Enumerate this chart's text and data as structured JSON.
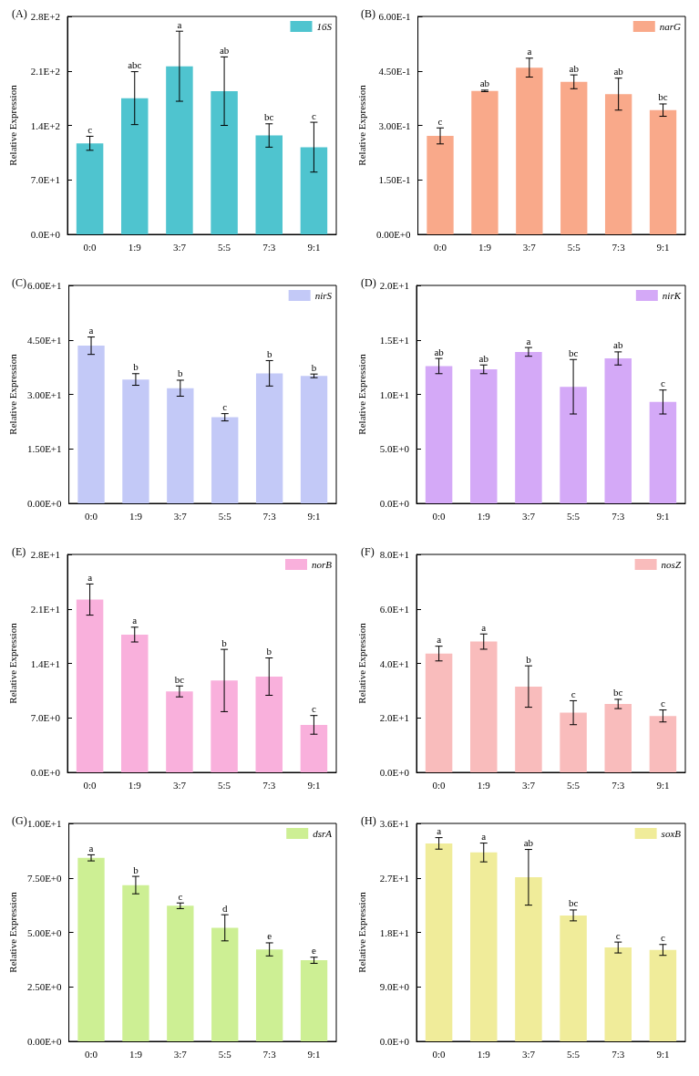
{
  "chart_data": [
    {
      "type": "bar",
      "title": "(A)",
      "ylabel": "Relative Expression",
      "categories": [
        "0:0",
        "1:9",
        "3:7",
        "5:5",
        "7:3",
        "9:1"
      ],
      "legend": "top right",
      "ylim": [
        0,
        280
      ],
      "yticks": [
        {
          "value": 0,
          "label": "0.0E+0"
        },
        {
          "value": 70,
          "label": "7.0E+1"
        },
        {
          "value": 140,
          "label": "1.4E+2"
        },
        {
          "value": 210,
          "label": "2.1E+2"
        },
        {
          "value": 280,
          "label": "2.8E+2"
        }
      ],
      "series": [
        {
          "name": "16S",
          "color": "#4fc4cf",
          "values": [
            117,
            175,
            216,
            184,
            127,
            112
          ],
          "errors": [
            9,
            34,
            45,
            44,
            15,
            32
          ],
          "value_labels": [
            "c",
            "abc",
            null,
            null,
            "bc",
            "c"
          ]
        }
      ],
      "annotations": [
        "a",
        "ab"
      ]
    },
    {
      "type": "bar",
      "title": "(B)",
      "ylabel": "Relative Expression",
      "categories": [
        "0:0",
        "1:9",
        "3:7",
        "5:5",
        "7:3",
        "9:1"
      ],
      "legend": "top right",
      "ylim": [
        0,
        0.6
      ],
      "yticks": [
        {
          "value": 0,
          "label": "0.00E+0"
        },
        {
          "value": 0.15,
          "label": "1.50E-1"
        },
        {
          "value": 0.3,
          "label": "3.00E-1"
        },
        {
          "value": 0.45,
          "label": "4.50E-1"
        },
        {
          "value": 0.6,
          "label": "6.00E-1"
        }
      ],
      "series": [
        {
          "name": "narG",
          "color": "#f9a98a",
          "values": [
            0.271,
            0.395,
            0.459,
            0.42,
            0.386,
            0.342
          ],
          "errors": [
            0.022,
            0.002,
            0.026,
            0.019,
            0.044,
            0.017
          ],
          "value_labels": [
            "c",
            "ab",
            "a",
            "ab",
            "ab",
            "bc"
          ]
        }
      ]
    },
    {
      "type": "bar",
      "title": "(C)",
      "ylabel": "Relative Expression",
      "categories": [
        "0:0",
        "1:9",
        "3:7",
        "5:5",
        "7:3",
        "9:1"
      ],
      "legend": "top right",
      "ylim": [
        0,
        60
      ],
      "yticks": [
        {
          "value": 0,
          "label": "0.00E+0"
        },
        {
          "value": 15,
          "label": "1.50E+1"
        },
        {
          "value": 30,
          "label": "3.00E+1"
        },
        {
          "value": 45,
          "label": "4.50E+1"
        },
        {
          "value": 60,
          "label": "6.00E+1"
        }
      ],
      "series": [
        {
          "name": "nirS",
          "color": "#c3c9f7",
          "values": [
            43.4,
            34.1,
            31.7,
            23.7,
            35.8,
            35.1
          ],
          "errors": [
            2.4,
            1.6,
            2.2,
            1.0,
            3.5,
            0.5
          ],
          "value_labels": [
            "a",
            "b",
            "b",
            "c",
            "b",
            "b"
          ]
        }
      ]
    },
    {
      "type": "bar",
      "title": "(D)",
      "ylabel": "Relative Expression",
      "categories": [
        "0:0",
        "1:9",
        "3:7",
        "5:5",
        "7:3",
        "9:1"
      ],
      "legend": "top right",
      "ylim": [
        0,
        20
      ],
      "yticks": [
        {
          "value": 0,
          "label": "0.0E+0"
        },
        {
          "value": 5,
          "label": "5.0E+0"
        },
        {
          "value": 10,
          "label": "1.0E+1"
        },
        {
          "value": 15,
          "label": "1.5E+1"
        },
        {
          "value": 20,
          "label": "2.0E+1"
        }
      ],
      "series": [
        {
          "name": "nirK",
          "color": "#d4a9f7",
          "values": [
            12.6,
            12.3,
            13.9,
            10.7,
            13.3,
            9.3
          ],
          "errors": [
            0.7,
            0.4,
            0.4,
            2.5,
            0.6,
            1.1
          ],
          "value_labels": [
            "ab",
            "ab",
            "a",
            "bc",
            "ab",
            "c"
          ]
        }
      ]
    },
    {
      "type": "bar",
      "title": "(E)",
      "ylabel": "Relative Expression",
      "categories": [
        "0:0",
        "1:9",
        "3:7",
        "5:5",
        "7:3",
        "9:1"
      ],
      "legend": "top right",
      "ylim": [
        0,
        28
      ],
      "yticks": [
        {
          "value": 0,
          "label": "0.0E+0"
        },
        {
          "value": 7,
          "label": "7.0E+0"
        },
        {
          "value": 14,
          "label": "1.4E+1"
        },
        {
          "value": 21,
          "label": "2.1E+1"
        },
        {
          "value": 28,
          "label": "2.8E+1"
        }
      ],
      "series": [
        {
          "name": "norB",
          "color": "#f9b0dc",
          "values": [
            22.2,
            17.7,
            10.4,
            11.8,
            12.3,
            6.1
          ],
          "errors": [
            2.0,
            0.95,
            0.7,
            4.0,
            2.4,
            1.2
          ],
          "value_labels": [
            "a",
            "a",
            "bc",
            null,
            "b",
            "c"
          ]
        }
      ],
      "annotations": [
        "b"
      ]
    },
    {
      "type": "bar",
      "title": "(F)",
      "ylabel": "Relative Expression",
      "categories": [
        "0:0",
        "1:9",
        "3:7",
        "5:5",
        "7:3",
        "9:1"
      ],
      "legend": "top right",
      "ylim": [
        0,
        80
      ],
      "yticks": [
        {
          "value": 0,
          "label": "0.0E+0"
        },
        {
          "value": 20,
          "label": "2.0E+1"
        },
        {
          "value": 40,
          "label": "4.0E+1"
        },
        {
          "value": 60,
          "label": "6.0E+1"
        },
        {
          "value": 80,
          "label": "8.0E+1"
        }
      ],
      "series": [
        {
          "name": "nosZ",
          "color": "#f9bcbc",
          "values": [
            43.6,
            48.0,
            31.5,
            21.9,
            25.1,
            20.7
          ],
          "errors": [
            2.7,
            2.8,
            7.6,
            4.4,
            1.7,
            2.2
          ],
          "value_labels": [
            "a",
            "a",
            "b",
            "c",
            "bc",
            "c"
          ]
        }
      ]
    },
    {
      "type": "bar",
      "title": "(G)",
      "ylabel": "Relative Expression",
      "categories": [
        "0:0",
        "1:9",
        "3:7",
        "5:5",
        "7:3",
        "9:1"
      ],
      "legend": "top right",
      "ylim": [
        0,
        10
      ],
      "yticks": [
        {
          "value": 0,
          "label": "0.00E+0"
        },
        {
          "value": 2.5,
          "label": "2.50E+0"
        },
        {
          "value": 5,
          "label": "5.00E+0"
        },
        {
          "value": 7.5,
          "label": "7.50E+0"
        },
        {
          "value": 10,
          "label": "1.00E+1"
        }
      ],
      "series": [
        {
          "name": "dsrA",
          "color": "#cdef94",
          "values": [
            8.42,
            7.17,
            6.22,
            5.21,
            4.22,
            3.72
          ],
          "errors": [
            0.14,
            0.4,
            0.13,
            0.6,
            0.3,
            0.14
          ],
          "value_labels": [
            "a",
            "b",
            "c",
            "d",
            "e",
            "e"
          ]
        }
      ]
    },
    {
      "type": "bar",
      "title": "(H)",
      "ylabel": "Relative Expression",
      "categories": [
        "0:0",
        "1:9",
        "3:7",
        "5:5",
        "7:3",
        "9:1"
      ],
      "legend": "top right",
      "ylim": [
        0,
        36
      ],
      "yticks": [
        {
          "value": 0,
          "label": "0.0E+0"
        },
        {
          "value": 9,
          "label": "9.0E+0"
        },
        {
          "value": 18,
          "label": "1.8E+1"
        },
        {
          "value": 27,
          "label": "2.7E+1"
        },
        {
          "value": 36,
          "label": "3.6E+1"
        }
      ],
      "series": [
        {
          "name": "soxB",
          "color": "#f0ec9a",
          "values": [
            32.7,
            31.2,
            27.1,
            20.8,
            15.5,
            15.1
          ],
          "errors": [
            0.95,
            1.55,
            4.6,
            0.9,
            0.9,
            0.9
          ],
          "value_labels": [
            "a",
            "a",
            "ab",
            "bc",
            "c",
            "c"
          ]
        }
      ]
    }
  ]
}
